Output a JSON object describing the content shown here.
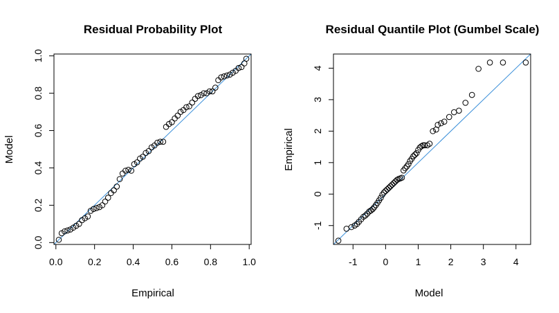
{
  "chart_data": [
    {
      "type": "scatter",
      "title": "Residual Probability Plot",
      "xlabel": "Empirical",
      "ylabel": "Model",
      "xlim": [
        -0.01,
        1.01
      ],
      "ylim": [
        -0.01,
        1.01
      ],
      "xticks": [
        0.0,
        0.2,
        0.4,
        0.6,
        0.8,
        1.0
      ],
      "xtick_labels": [
        "0.0",
        "0.2",
        "0.4",
        "0.6",
        "0.8",
        "1.0"
      ],
      "yticks": [
        0.0,
        0.2,
        0.4,
        0.6,
        0.8,
        1.0
      ],
      "ytick_labels": [
        "0.0",
        "0.2",
        "0.4",
        "0.6",
        "0.8",
        "1.0"
      ],
      "reference_line": {
        "from": [
          -0.01,
          -0.01
        ],
        "to": [
          1.01,
          1.01
        ],
        "color": "#3a8fd9"
      },
      "point_color": "#000000",
      "x": [
        0.015,
        0.03,
        0.045,
        0.06,
        0.075,
        0.09,
        0.105,
        0.12,
        0.135,
        0.15,
        0.165,
        0.18,
        0.195,
        0.21,
        0.225,
        0.24,
        0.255,
        0.27,
        0.285,
        0.3,
        0.315,
        0.33,
        0.345,
        0.36,
        0.375,
        0.39,
        0.405,
        0.42,
        0.435,
        0.45,
        0.465,
        0.48,
        0.495,
        0.51,
        0.525,
        0.54,
        0.555,
        0.57,
        0.585,
        0.6,
        0.615,
        0.63,
        0.645,
        0.66,
        0.675,
        0.69,
        0.705,
        0.72,
        0.735,
        0.75,
        0.765,
        0.78,
        0.795,
        0.81,
        0.825,
        0.84,
        0.855,
        0.87,
        0.885,
        0.9,
        0.915,
        0.93,
        0.945,
        0.96,
        0.975,
        0.985
      ],
      "y": [
        0.015,
        0.05,
        0.06,
        0.065,
        0.07,
        0.08,
        0.09,
        0.1,
        0.12,
        0.13,
        0.14,
        0.17,
        0.18,
        0.185,
        0.19,
        0.2,
        0.22,
        0.24,
        0.265,
        0.28,
        0.3,
        0.34,
        0.37,
        0.385,
        0.39,
        0.385,
        0.42,
        0.43,
        0.45,
        0.46,
        0.48,
        0.49,
        0.51,
        0.52,
        0.535,
        0.54,
        0.54,
        0.62,
        0.635,
        0.645,
        0.665,
        0.68,
        0.7,
        0.71,
        0.725,
        0.73,
        0.75,
        0.77,
        0.785,
        0.79,
        0.8,
        0.8,
        0.81,
        0.81,
        0.83,
        0.87,
        0.885,
        0.89,
        0.895,
        0.9,
        0.91,
        0.92,
        0.935,
        0.94,
        0.96,
        0.985
      ]
    },
    {
      "type": "scatter",
      "title": "Residual Quantile Plot (Gumbel Scale)",
      "xlabel": "Model",
      "ylabel": "Empirical",
      "xlim": [
        -1.6,
        4.45
      ],
      "ylim": [
        -1.6,
        4.45
      ],
      "xticks": [
        -1,
        0,
        1,
        2,
        3,
        4
      ],
      "xtick_labels": [
        "-1",
        "0",
        "1",
        "2",
        "3",
        "4"
      ],
      "yticks": [
        -1,
        0,
        1,
        2,
        3,
        4
      ],
      "ytick_labels": [
        "-1",
        "0",
        "1",
        "2",
        "3",
        "4"
      ],
      "reference_line": {
        "from": [
          -1.6,
          -1.6
        ],
        "to": [
          4.45,
          4.45
        ],
        "color": "#3a8fd9"
      },
      "point_color": "#000000",
      "x": [
        -1.45,
        -1.2,
        -1.05,
        -0.95,
        -0.88,
        -0.82,
        -0.75,
        -0.68,
        -0.62,
        -0.56,
        -0.5,
        -0.45,
        -0.4,
        -0.35,
        -0.3,
        -0.25,
        -0.2,
        -0.15,
        -0.1,
        -0.05,
        0.0,
        0.05,
        0.1,
        0.15,
        0.2,
        0.25,
        0.3,
        0.35,
        0.4,
        0.45,
        0.5,
        0.55,
        0.6,
        0.65,
        0.7,
        0.75,
        0.8,
        0.85,
        0.9,
        0.95,
        1.0,
        1.05,
        1.1,
        1.15,
        1.2,
        1.28,
        1.35,
        1.45,
        1.55,
        1.6,
        1.7,
        1.8,
        1.95,
        2.1,
        2.25,
        2.45,
        2.65,
        2.85,
        3.2,
        3.6,
        4.3
      ],
      "y": [
        -1.48,
        -1.1,
        -1.05,
        -1.0,
        -0.95,
        -0.88,
        -0.8,
        -0.72,
        -0.68,
        -0.62,
        -0.55,
        -0.52,
        -0.48,
        -0.42,
        -0.35,
        -0.28,
        -0.2,
        -0.12,
        -0.02,
        0.05,
        0.1,
        0.15,
        0.2,
        0.25,
        0.3,
        0.35,
        0.4,
        0.45,
        0.48,
        0.5,
        0.52,
        0.75,
        0.82,
        0.88,
        0.95,
        1.05,
        1.12,
        1.2,
        1.25,
        1.3,
        1.4,
        1.48,
        1.52,
        1.55,
        1.55,
        1.55,
        1.6,
        2.0,
        2.05,
        2.2,
        2.25,
        2.3,
        2.45,
        2.6,
        2.65,
        2.9,
        3.15,
        3.98,
        4.18,
        4.18,
        4.18
      ]
    }
  ]
}
